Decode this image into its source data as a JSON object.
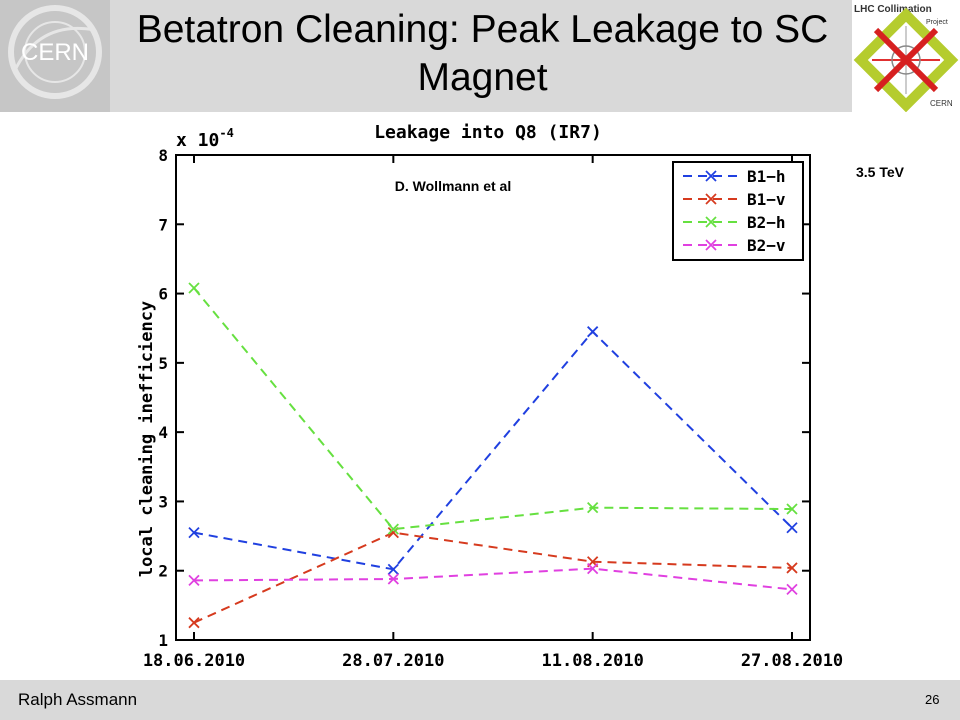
{
  "slide": {
    "title": "Betatron Cleaning: Peak Leakage to SC Magnet",
    "presenter": "Ralph Assmann",
    "page_number": "26",
    "energy_label": "3.5 TeV",
    "logo_left": "CERN",
    "logo_right": [
      "LHC Collimation",
      "Project",
      "CERN"
    ]
  },
  "chart_data": {
    "type": "line",
    "title": "Leakage into Q8 (IR7)",
    "exponent_label": "x 10",
    "exponent_power": "-4",
    "annotation": "D. Wollmann et al",
    "xlabel": "",
    "ylabel": "local cleaning inefficiency",
    "categories": [
      "18.06.2010",
      "28.07.2010",
      "11.08.2010",
      "27.08.2010"
    ],
    "y_ticks": [
      "1",
      "2",
      "3",
      "4",
      "5",
      "6",
      "7",
      "8"
    ],
    "ylim": [
      1,
      8
    ],
    "grid": false,
    "legend_position": "top-right",
    "series": [
      {
        "name": "B1−h",
        "color": "#2040e0",
        "values": [
          2.55,
          2.02,
          5.45,
          2.62
        ]
      },
      {
        "name": "B1−v",
        "color": "#d63a1e",
        "values": [
          1.25,
          2.55,
          2.13,
          2.04
        ]
      },
      {
        "name": "B2−h",
        "color": "#66e040",
        "values": [
          6.08,
          2.6,
          2.91,
          2.89
        ]
      },
      {
        "name": "B2−v",
        "color": "#e040e0",
        "values": [
          1.86,
          1.88,
          2.03,
          1.73
        ]
      }
    ]
  }
}
